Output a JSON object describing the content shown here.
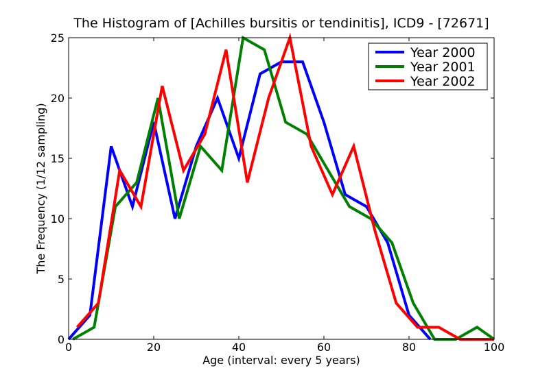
{
  "chart_data": {
    "type": "line",
    "title": "The Histogram of [Achilles bursitis or tendinitis], ICD9 - [72671]",
    "xlabel": "Age (interval: every 5 years)",
    "ylabel": "The Frequency (1/12 sampling)",
    "xlim": [
      0,
      100
    ],
    "ylim": [
      0,
      25
    ],
    "xticks": [
      0,
      20,
      40,
      60,
      80,
      100
    ],
    "yticks": [
      0,
      5,
      10,
      15,
      20,
      25
    ],
    "grid": false,
    "legend_position": "top-right",
    "series": [
      {
        "name": "Year 2000",
        "color": "#0000ff",
        "x": [
          0,
          5,
          10,
          15,
          20,
          25,
          30,
          35,
          40,
          45,
          50,
          55,
          60,
          65,
          70,
          75,
          80,
          85
        ],
        "y": [
          0,
          2,
          16,
          11,
          18,
          10,
          16,
          20,
          15,
          22,
          23,
          23,
          18,
          12,
          11,
          8,
          2,
          0
        ]
      },
      {
        "name": "Year 2001",
        "color": "#008000",
        "x": [
          1,
          6,
          11,
          16,
          21,
          26,
          31,
          36,
          41,
          46,
          51,
          56,
          61,
          66,
          71,
          76,
          81,
          86,
          91,
          96,
          100
        ],
        "y": [
          0,
          1,
          11,
          13,
          20,
          10,
          16,
          14,
          25,
          24,
          18,
          17,
          14,
          11,
          10,
          8,
          3,
          0,
          0,
          1,
          0
        ]
      },
      {
        "name": "Year 2002",
        "color": "#ff0000",
        "x": [
          2,
          7,
          12,
          17,
          22,
          27,
          32,
          37,
          42,
          47,
          52,
          57,
          62,
          67,
          72,
          77,
          82,
          87,
          92,
          97,
          100
        ],
        "y": [
          1,
          3,
          14,
          11,
          21,
          14,
          17,
          24,
          13,
          20,
          25,
          16,
          12,
          16,
          9,
          3,
          1,
          1,
          0,
          0,
          0
        ]
      }
    ]
  }
}
